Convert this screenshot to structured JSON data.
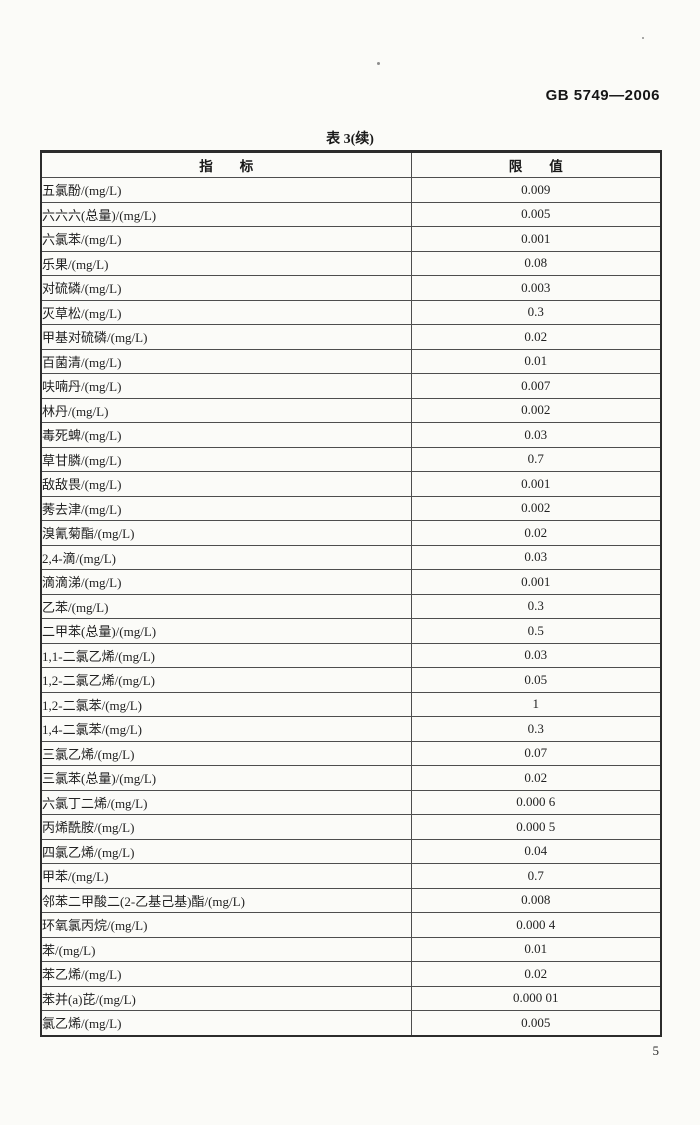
{
  "document": {
    "standard_code": "GB 5749—2006",
    "table_title": "表 3(续)",
    "page_number": "5"
  },
  "table": {
    "headers": [
      "指　　标",
      "限　　值"
    ],
    "rows": [
      {
        "indicator": "五氯酚/(mg/L)",
        "limit": "0.009"
      },
      {
        "indicator": "六六六(总量)/(mg/L)",
        "limit": "0.005"
      },
      {
        "indicator": "六氯苯/(mg/L)",
        "limit": "0.001"
      },
      {
        "indicator": "乐果/(mg/L)",
        "limit": "0.08"
      },
      {
        "indicator": "对硫磷/(mg/L)",
        "limit": "0.003"
      },
      {
        "indicator": "灭草松/(mg/L)",
        "limit": "0.3"
      },
      {
        "indicator": "甲基对硫磷/(mg/L)",
        "limit": "0.02"
      },
      {
        "indicator": "百菌清/(mg/L)",
        "limit": "0.01"
      },
      {
        "indicator": "呋喃丹/(mg/L)",
        "limit": "0.007"
      },
      {
        "indicator": "林丹/(mg/L)",
        "limit": "0.002"
      },
      {
        "indicator": "毒死蜱/(mg/L)",
        "limit": "0.03"
      },
      {
        "indicator": "草甘膦/(mg/L)",
        "limit": "0.7"
      },
      {
        "indicator": "敌敌畏/(mg/L)",
        "limit": "0.001"
      },
      {
        "indicator": "莠去津/(mg/L)",
        "limit": "0.002"
      },
      {
        "indicator": "溴氰菊酯/(mg/L)",
        "limit": "0.02"
      },
      {
        "indicator": "2,4-滴/(mg/L)",
        "limit": "0.03"
      },
      {
        "indicator": "滴滴涕/(mg/L)",
        "limit": "0.001"
      },
      {
        "indicator": "乙苯/(mg/L)",
        "limit": "0.3"
      },
      {
        "indicator": "二甲苯(总量)/(mg/L)",
        "limit": "0.5"
      },
      {
        "indicator": "1,1-二氯乙烯/(mg/L)",
        "limit": "0.03"
      },
      {
        "indicator": "1,2-二氯乙烯/(mg/L)",
        "limit": "0.05"
      },
      {
        "indicator": "1,2-二氯苯/(mg/L)",
        "limit": "1"
      },
      {
        "indicator": "1,4-二氯苯/(mg/L)",
        "limit": "0.3"
      },
      {
        "indicator": "三氯乙烯/(mg/L)",
        "limit": "0.07"
      },
      {
        "indicator": "三氯苯(总量)/(mg/L)",
        "limit": "0.02"
      },
      {
        "indicator": "六氯丁二烯/(mg/L)",
        "limit": "0.000 6"
      },
      {
        "indicator": "丙烯酰胺/(mg/L)",
        "limit": "0.000 5"
      },
      {
        "indicator": "四氯乙烯/(mg/L)",
        "limit": "0.04"
      },
      {
        "indicator": "甲苯/(mg/L)",
        "limit": "0.7"
      },
      {
        "indicator": "邻苯二甲酸二(2-乙基己基)酯/(mg/L)",
        "limit": "0.008"
      },
      {
        "indicator": "环氧氯丙烷/(mg/L)",
        "limit": "0.000 4"
      },
      {
        "indicator": "苯/(mg/L)",
        "limit": "0.01"
      },
      {
        "indicator": "苯乙烯/(mg/L)",
        "limit": "0.02"
      },
      {
        "indicator": "苯并(a)芘/(mg/L)",
        "limit": "0.000 01"
      },
      {
        "indicator": "氯乙烯/(mg/L)",
        "limit": "0.005"
      }
    ]
  }
}
